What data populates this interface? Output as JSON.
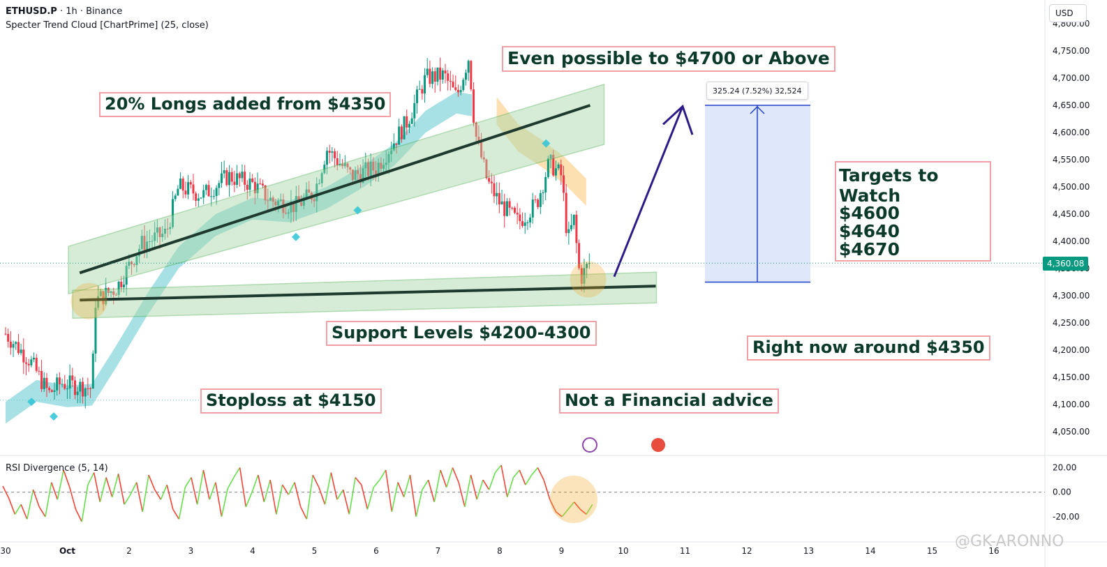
{
  "header": {
    "symbol": "ETHUSD.P",
    "interval_exchange": " · 1h · Binance",
    "indicator": "Specter Trend Cloud [ChartPrime] (25, close)"
  },
  "currency_button": "USD",
  "current_price": "4,360.08",
  "measure_label": "325.24 (7.52%) 32,524",
  "rsi_title": "RSI Divergence (5, 14)",
  "watermark": "@GK-ARONNO",
  "annotations": {
    "even_possible": "Even possible to $4700 or Above",
    "longs_added": "20% Longs added from $4350",
    "support_levels": "Support Levels $4200-4300",
    "stoploss": "Stoploss at $4150",
    "not_financial": "Not a Financial advice",
    "right_now": "Right now around $4350",
    "targets_title": "Targets to Watch",
    "targets": [
      "$4600",
      "$4640",
      "$4670"
    ]
  },
  "colors": {
    "up": "#089981",
    "down": "#f23645",
    "cloud": "#5ec8d0",
    "channel_fill": "#a5d6a7",
    "channel_border": "#4caf50",
    "trend_line": "#1e3a2f",
    "projection_arrow": "#2e1a87",
    "measure_fill": "#dbe4fb",
    "measure_border": "#1e40c8",
    "circle": "#f5a623",
    "rsi_up": "#66e04a",
    "rsi_down": "#f44336"
  },
  "chart_data": {
    "type": "candlestick",
    "symbol": "ETHUSD.P",
    "timeframe": "1h",
    "y_axis": {
      "ticks": [
        "4,800.00",
        "4,750.00",
        "4,700.00",
        "4,650.00",
        "4,600.00",
        "4,550.00",
        "4,500.00",
        "4,450.00",
        "4,400.00",
        "4,350.00",
        "4,300.00",
        "4,250.00",
        "4,200.00",
        "4,150.00",
        "4,100.00",
        "4,050.00"
      ],
      "range": [
        4020,
        4810
      ]
    },
    "x_axis": {
      "ticks": [
        "30",
        "Oct",
        "2",
        "3",
        "4",
        "5",
        "6",
        "7",
        "8",
        "9",
        "10",
        "11",
        "12",
        "13",
        "14",
        "15",
        "16"
      ]
    },
    "price_path": [
      {
        "day": 0.0,
        "price": 4230
      },
      {
        "day": 0.4,
        "price": 4180
      },
      {
        "day": 0.7,
        "price": 4120
      },
      {
        "day": 0.9,
        "price": 4140
      },
      {
        "day": 1.1,
        "price": 4135
      },
      {
        "day": 1.4,
        "price": 4130
      },
      {
        "day": 1.45,
        "price": 4290
      },
      {
        "day": 1.8,
        "price": 4315
      },
      {
        "day": 2.2,
        "price": 4395
      },
      {
        "day": 2.6,
        "price": 4415
      },
      {
        "day": 2.8,
        "price": 4500
      },
      {
        "day": 3.2,
        "price": 4485
      },
      {
        "day": 3.6,
        "price": 4520
      },
      {
        "day": 4.0,
        "price": 4505
      },
      {
        "day": 4.3,
        "price": 4475
      },
      {
        "day": 4.7,
        "price": 4465
      },
      {
        "day": 5.0,
        "price": 4490
      },
      {
        "day": 5.2,
        "price": 4570
      },
      {
        "day": 5.6,
        "price": 4520
      },
      {
        "day": 6.0,
        "price": 4535
      },
      {
        "day": 6.5,
        "price": 4620
      },
      {
        "day": 6.8,
        "price": 4700
      },
      {
        "day": 7.1,
        "price": 4705
      },
      {
        "day": 7.3,
        "price": 4665
      },
      {
        "day": 7.5,
        "price": 4740
      },
      {
        "day": 7.6,
        "price": 4600
      },
      {
        "day": 7.8,
        "price": 4510
      },
      {
        "day": 8.0,
        "price": 4470
      },
      {
        "day": 8.3,
        "price": 4435
      },
      {
        "day": 8.6,
        "price": 4470
      },
      {
        "day": 8.8,
        "price": 4545
      },
      {
        "day": 9.0,
        "price": 4520
      },
      {
        "day": 9.1,
        "price": 4400
      },
      {
        "day": 9.2,
        "price": 4440
      },
      {
        "day": 9.3,
        "price": 4330
      },
      {
        "day": 9.45,
        "price": 4360
      }
    ],
    "rsi": {
      "ticks": [
        "20.00",
        "0.00",
        "-20.00"
      ],
      "range": [
        -28,
        26
      ],
      "values": [
        5,
        -5,
        -18,
        -10,
        -22,
        2,
        -12,
        -20,
        8,
        -6,
        18,
        4,
        -14,
        -24,
        6,
        16,
        -8,
        12,
        -4,
        15,
        -10,
        -2,
        8,
        -16,
        14,
        2,
        -6,
        6,
        -14,
        -22,
        4,
        12,
        -10,
        18,
        -6,
        8,
        -20,
        3,
        12,
        20,
        -12,
        0,
        14,
        -8,
        10,
        -18,
        6,
        -2,
        8,
        -12,
        -22,
        14,
        4,
        -10,
        16,
        -6,
        2,
        -18,
        12,
        6,
        -14,
        4,
        10,
        18,
        -16,
        8,
        -4,
        14,
        -20,
        2,
        10,
        -8,
        18,
        4,
        20,
        8,
        -12,
        14,
        -6,
        10,
        2,
        16,
        22,
        -4,
        12,
        18,
        6,
        14,
        20,
        10,
        -6,
        -16,
        -20,
        -14,
        -8,
        -14,
        -18,
        -10
      ]
    },
    "series_lines": {
      "channel_upper": {
        "from": {
          "day": 1.2,
          "price": 4365
        },
        "to": {
          "day": 9.35,
          "price": 4650
        }
      },
      "support_channel": {
        "from": {
          "day": 1.2,
          "price": 4292
        },
        "to": {
          "day": 9.35,
          "price": 4315
        }
      },
      "measure_box": {
        "top": 4650,
        "bottom": 4325
      }
    }
  }
}
